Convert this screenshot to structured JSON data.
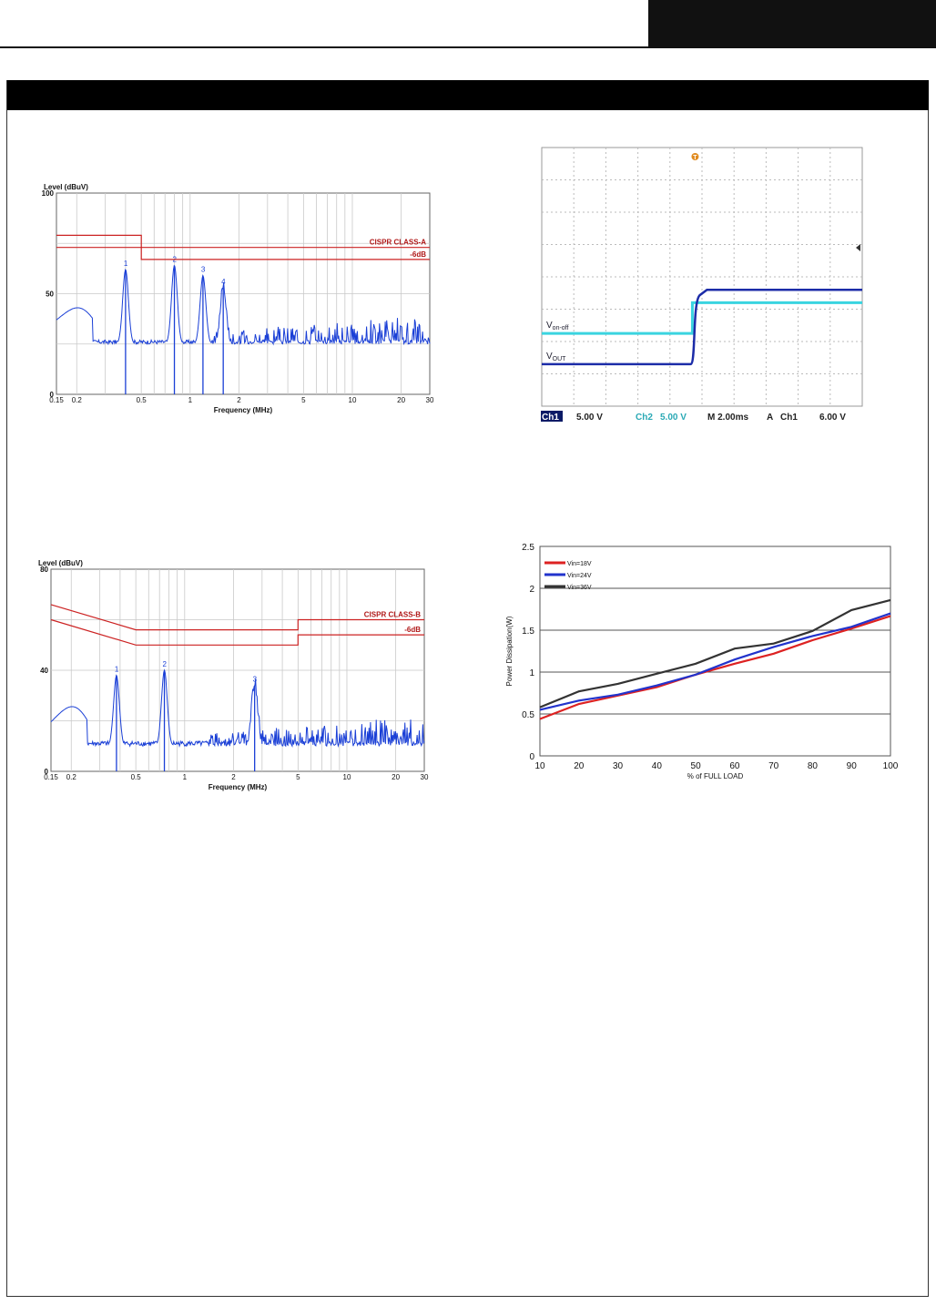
{
  "page": {
    "colors": {
      "ink": "#111111",
      "bar": "#000000",
      "limit": "#cc2222",
      "trace": "#1a3fd6"
    }
  },
  "chart_data": [
    {
      "id": "emi_a",
      "type": "line",
      "y_title": "Level (dBuV)",
      "x_title": "Frequency (MHz)",
      "x_scale": "log",
      "xlim": [
        0.15,
        30
      ],
      "ylim": [
        0,
        100
      ],
      "x_ticks": [
        0.15,
        0.2,
        0.5,
        1,
        2,
        5,
        10,
        20,
        30
      ],
      "x_tick_labels": [
        "0.15",
        "0.2",
        "0.5",
        "1",
        "2",
        "5",
        "10",
        "20",
        "30"
      ],
      "y_ticks": [
        0,
        50,
        100
      ],
      "y_tick_labels": [
        "0",
        "50",
        "100"
      ],
      "limit_lines": [
        {
          "label": "CISPR CLASS-A",
          "points": [
            [
              0.15,
              79
            ],
            [
              0.5,
              79
            ],
            [
              0.5,
              73
            ],
            [
              30,
              73
            ]
          ]
        },
        {
          "label": "-6dB",
          "points": [
            [
              0.15,
              73
            ],
            [
              0.5,
              73
            ],
            [
              0.5,
              67
            ],
            [
              30,
              67
            ]
          ]
        }
      ],
      "peaks": [
        {
          "label": "1",
          "x": 0.4,
          "y": 62
        },
        {
          "label": "2",
          "x": 0.8,
          "y": 64
        },
        {
          "label": "3",
          "x": 1.2,
          "y": 59
        },
        {
          "label": "4",
          "x": 1.6,
          "y": 53
        }
      ],
      "noise_floor": 25,
      "grid": true
    },
    {
      "id": "scope",
      "type": "line",
      "trace_labels": [
        {
          "main": "V",
          "sub": "on-off"
        },
        {
          "main": "V",
          "sub": "OUT"
        }
      ],
      "time_per_div_ms": 2,
      "divisions": {
        "x": 10,
        "y": 8
      },
      "trigger_marker": "T",
      "series": [
        {
          "channel": "Ch2",
          "color": "#3ad4e0",
          "low_div": 2.25,
          "high_div": 3.2,
          "step_div": 4.7
        },
        {
          "channel": "Ch1",
          "color": "#1c2ca8",
          "low_div": 0.1,
          "high_div": 2.35,
          "step_div": 4.7
        }
      ],
      "readout": [
        {
          "text": "Ch1",
          "inverted": true
        },
        {
          "text": "5.00 V",
          "inverted": false
        },
        {
          "text": "Ch2",
          "inverted": false
        },
        {
          "text": "5.00 V",
          "inverted": false
        },
        {
          "text": "M 2.00ms",
          "inverted": false
        },
        {
          "text": "A",
          "inverted": false
        },
        {
          "text": "Ch1",
          "inverted": false
        },
        {
          "text": "6.00 V",
          "inverted": false
        }
      ],
      "grid": true
    },
    {
      "id": "emi_b",
      "type": "line",
      "y_title": "Level (dBuV)",
      "x_title": "Frequency (MHz)",
      "x_scale": "log",
      "xlim": [
        0.15,
        30
      ],
      "ylim": [
        0,
        80
      ],
      "x_ticks": [
        0.15,
        0.2,
        0.5,
        1,
        2,
        5,
        10,
        20,
        30
      ],
      "x_tick_labels": [
        "0.15",
        "0.2",
        "0.5",
        "1",
        "2",
        "5",
        "10",
        "20",
        "30"
      ],
      "y_ticks": [
        0,
        40,
        80
      ],
      "y_tick_labels": [
        "0",
        "40",
        "80"
      ],
      "limit_lines": [
        {
          "label": "CISPR CLASS-B",
          "points": [
            [
              0.15,
              66
            ],
            [
              0.5,
              56
            ],
            [
              5,
              56
            ],
            [
              5,
              60
            ],
            [
              30,
              60
            ]
          ]
        },
        {
          "label": "-6dB",
          "points": [
            [
              0.15,
              60
            ],
            [
              0.5,
              50
            ],
            [
              5,
              50
            ],
            [
              5,
              54
            ],
            [
              30,
              54
            ]
          ]
        }
      ],
      "peaks": [
        {
          "label": "1",
          "x": 0.38,
          "y": 38
        },
        {
          "label": "2",
          "x": 0.75,
          "y": 40
        },
        {
          "label": "3",
          "x": 2.7,
          "y": 34
        }
      ],
      "noise_floor": 10,
      "grid": true
    },
    {
      "id": "dissipation",
      "type": "line",
      "x": [
        10,
        20,
        30,
        40,
        50,
        60,
        70,
        80,
        90,
        100
      ],
      "ylim": [
        0,
        2.5
      ],
      "y_ticks": [
        0,
        0.5,
        1,
        1.5,
        2,
        2.5
      ],
      "y_tick_labels": [
        "0",
        "0.5",
        "1",
        "1.5",
        "2",
        "2.5"
      ],
      "x_tick_labels": [
        "10",
        "20",
        "30",
        "40",
        "50",
        "60",
        "70",
        "80",
        "90",
        "100"
      ],
      "xlabel": "% of FULL LOAD",
      "ylabel": "Power Dissipation(W)",
      "legend_position": "top-left",
      "grid": true,
      "series": [
        {
          "name": "Vin=18V",
          "color": "#dd2222",
          "values": [
            0.44,
            0.62,
            0.72,
            0.82,
            0.97,
            1.1,
            1.22,
            1.38,
            1.52,
            1.67
          ]
        },
        {
          "name": "Vin=24V",
          "color": "#2233cc",
          "values": [
            0.55,
            0.66,
            0.73,
            0.84,
            0.97,
            1.15,
            1.3,
            1.43,
            1.54,
            1.7
          ]
        },
        {
          "name": "Vin=36V",
          "color": "#333333",
          "values": [
            0.58,
            0.77,
            0.86,
            0.98,
            1.1,
            1.28,
            1.34,
            1.49,
            1.74,
            1.86
          ]
        }
      ]
    }
  ]
}
